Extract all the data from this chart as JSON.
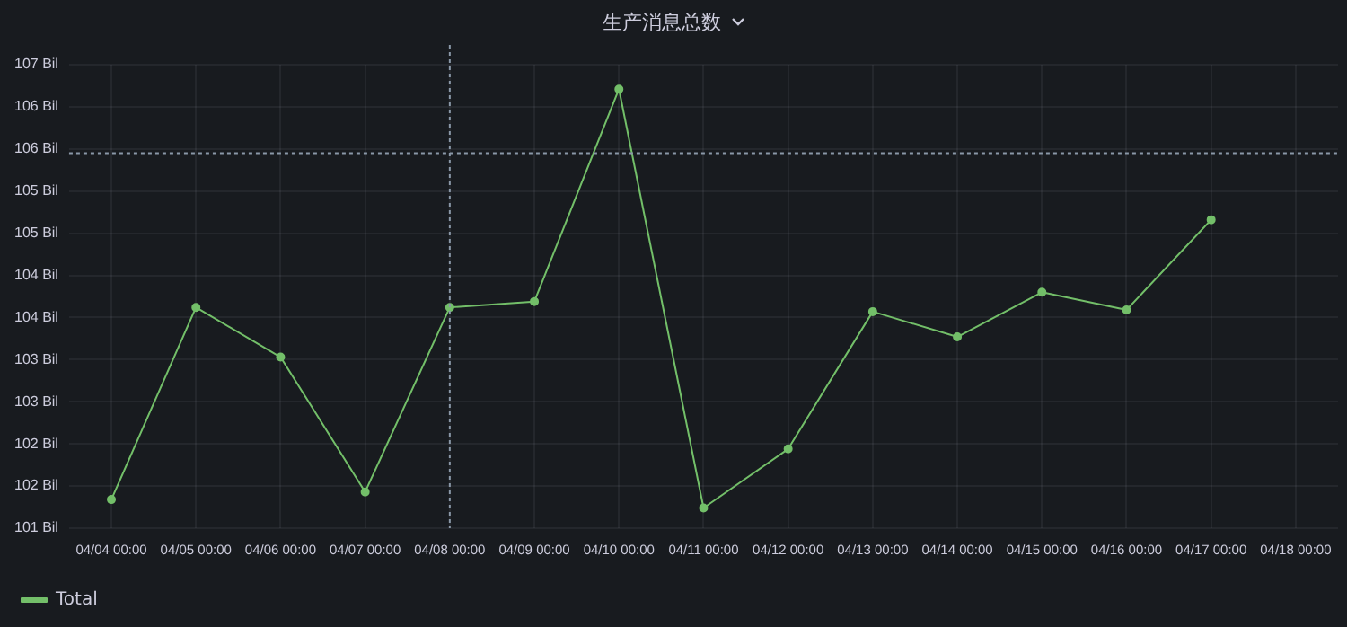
{
  "chart_data": {
    "type": "line",
    "title": "生产消息总数",
    "categories": [
      "04/04 00:00",
      "04/05 00:00",
      "04/06 00:00",
      "04/07 00:00",
      "04/08 00:00",
      "04/09 00:00",
      "04/10 00:00",
      "04/11 00:00",
      "04/12 00:00",
      "04/13 00:00",
      "04/14 00:00",
      "04/15 00:00",
      "04/16 00:00",
      "04/17 00:00",
      "04/18 00:00"
    ],
    "series": [
      {
        "name": "Total",
        "color": "#73bf69",
        "values": [
          101.34,
          103.62,
          103.03,
          101.43,
          103.62,
          103.69,
          106.21,
          101.24,
          101.94,
          103.57,
          103.27,
          103.8,
          103.59,
          104.66,
          null
        ]
      }
    ],
    "ylim": [
      101,
      106.5
    ],
    "yticks": [
      {
        "value": 101,
        "label": "101 Bil"
      },
      {
        "value": 101.5,
        "label": "102 Bil"
      },
      {
        "value": 102,
        "label": "102 Bil"
      },
      {
        "value": 102.5,
        "label": "103 Bil"
      },
      {
        "value": 103,
        "label": "103 Bil"
      },
      {
        "value": 103.5,
        "label": "104 Bil"
      },
      {
        "value": 104,
        "label": "104 Bil"
      },
      {
        "value": 104.5,
        "label": "105 Bil"
      },
      {
        "value": 105,
        "label": "105 Bil"
      },
      {
        "value": 105.5,
        "label": "106 Bil"
      },
      {
        "value": 106,
        "label": "106 Bil"
      },
      {
        "value": 106.5,
        "label": "107 Bil"
      }
    ],
    "ref_lines": [
      {
        "axis": "y",
        "value": 105.45,
        "color": "#8a98a8",
        "line_style": "dotted"
      },
      {
        "axis": "x",
        "value": "04/08 00:00",
        "color": "#8a98a8",
        "line_style": "dotted"
      }
    ],
    "grid": true,
    "legend": "bottom left",
    "marker": "circle",
    "line_style": "solid"
  }
}
